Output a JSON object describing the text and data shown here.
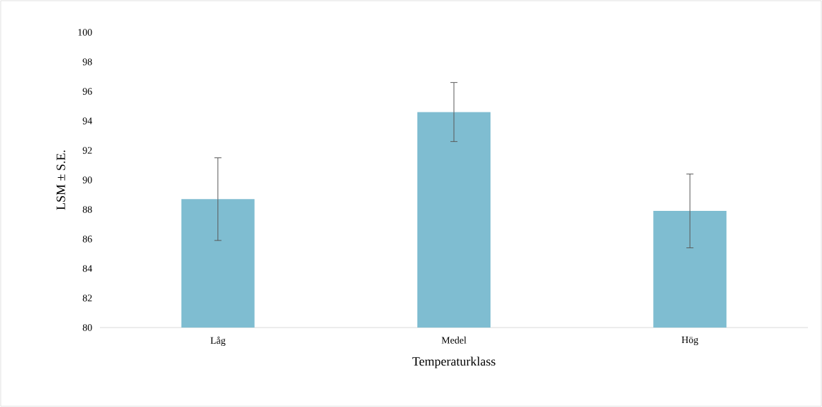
{
  "chart_data": {
    "type": "bar",
    "xlabel": "Temperaturklass",
    "ylabel": "LSM ± S.E.",
    "categories": [
      "Låg",
      "Medel",
      "Hög"
    ],
    "values": [
      88.7,
      94.6,
      87.9
    ],
    "errors": [
      2.8,
      2.0,
      2.5
    ],
    "color": "#7fbdd1",
    "ylim": [
      80,
      100
    ],
    "yticks": [
      80,
      82,
      84,
      86,
      88,
      90,
      92,
      94,
      96,
      98,
      100
    ],
    "grid": false
  }
}
